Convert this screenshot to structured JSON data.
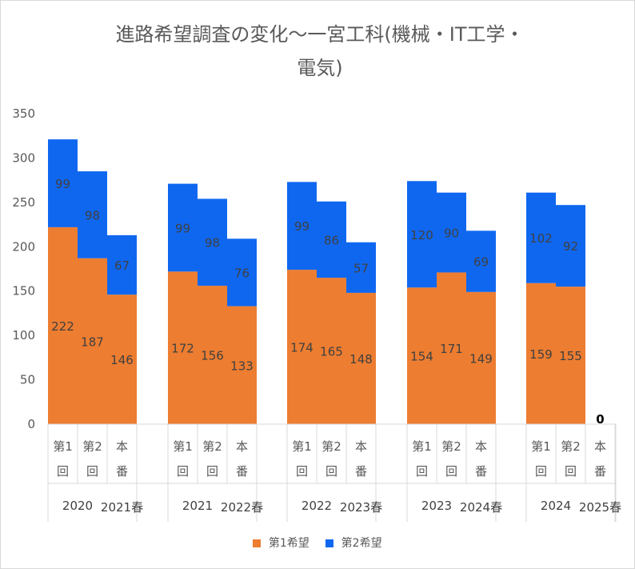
{
  "chart_data": {
    "type": "bar",
    "stacked": true,
    "title": "進路希望調査の変化～一宮工科(機械・IT工学・電気)",
    "ylim": [
      0,
      350
    ],
    "yticks": [
      0,
      50,
      100,
      150,
      200,
      250,
      300,
      350
    ],
    "grid": false,
    "legend_position": "bottom",
    "colors": {
      "first": "#ED7D31",
      "second": "#0F67F0"
    },
    "groups": [
      {
        "year": "2020",
        "next_label": "2021春",
        "categories": [
          "第1回",
          "第2回",
          "本番"
        ]
      },
      {
        "year": "2021",
        "next_label": "2022春",
        "categories": [
          "第1回",
          "第2回",
          "本番"
        ]
      },
      {
        "year": "2022",
        "next_label": "2023春",
        "categories": [
          "第1回",
          "第2回",
          "本番"
        ]
      },
      {
        "year": "2023",
        "next_label": "2024春",
        "categories": [
          "第1回",
          "第2回",
          "本番"
        ]
      },
      {
        "year": "2024",
        "next_label": "2025春",
        "categories": [
          "第1回",
          "第2回",
          "本番"
        ]
      }
    ],
    "series": [
      {
        "name": "第1希望",
        "values": [
          [
            222,
            187,
            146
          ],
          [
            172,
            156,
            133
          ],
          [
            174,
            165,
            148
          ],
          [
            154,
            171,
            149
          ],
          [
            159,
            155,
            0
          ]
        ]
      },
      {
        "name": "第2希望",
        "values": [
          [
            99,
            98,
            67
          ],
          [
            99,
            98,
            76
          ],
          [
            99,
            86,
            57
          ],
          [
            120,
            90,
            69
          ],
          [
            102,
            92,
            null
          ]
        ]
      }
    ]
  }
}
